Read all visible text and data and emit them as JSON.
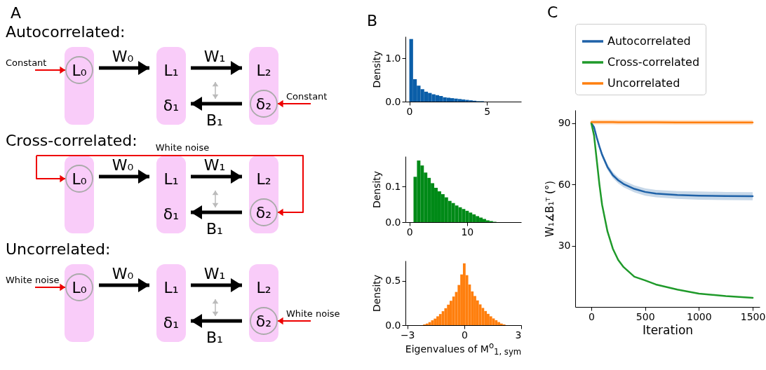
{
  "chart_data": [
    {
      "type": "other",
      "title": "A",
      "annotations": [
        "Autocorrelated:",
        "Constant",
        "Constant",
        "Cross-correlated:",
        "White noise",
        "Uncorrelated:",
        "White noise",
        "White noise",
        "L₀",
        "L₁",
        "L₂",
        "δ₁",
        "δ₂",
        "W₀",
        "W₁",
        "B₁"
      ]
    },
    {
      "type": "histogram",
      "title": "B",
      "ylabel": "Density",
      "color": "#0b5ea8",
      "bins": [
        0,
        0.24,
        0.48,
        0.72,
        0.96,
        1.2,
        1.44,
        1.68,
        1.92,
        2.16,
        2.4,
        2.64,
        2.88,
        3.12,
        3.36,
        3.6,
        3.84,
        4.08,
        4.32,
        4.56,
        4.8
      ],
      "values": [
        1.45,
        0.52,
        0.37,
        0.29,
        0.23,
        0.2,
        0.17,
        0.15,
        0.13,
        0.1,
        0.09,
        0.08,
        0.07,
        0.06,
        0.05,
        0.04,
        0.03,
        0.02,
        0.01,
        0.01
      ],
      "xlim": [
        -0.25,
        7.2
      ],
      "xticks": [
        0,
        5
      ],
      "ylim": [
        0,
        1.51
      ],
      "yticks": [
        {
          "value": 0,
          "label": "0.0"
        },
        {
          "value": 1,
          "label": "1.0"
        }
      ]
    },
    {
      "type": "histogram",
      "ylabel": "Density",
      "color": "#008a17",
      "bins": [
        0.7,
        1.3,
        1.9,
        2.5,
        3.1,
        3.7,
        4.3,
        4.9,
        5.5,
        6.1,
        6.7,
        7.3,
        7.9,
        8.5,
        9.1,
        9.7,
        10.3,
        10.9,
        11.5,
        12.1,
        12.7,
        13.3,
        13.9,
        14.5,
        15.1
      ],
      "values": [
        0.128,
        0.174,
        0.16,
        0.14,
        0.125,
        0.11,
        0.097,
        0.087,
        0.079,
        0.07,
        0.06,
        0.054,
        0.047,
        0.042,
        0.037,
        0.032,
        0.027,
        0.022,
        0.017,
        0.013,
        0.009,
        0.005,
        0.003,
        0.001
      ],
      "xlim": [
        -0.7,
        19.4
      ],
      "xticks": [
        0,
        10
      ],
      "ylim": [
        0,
        0.186
      ],
      "yticks": [
        {
          "value": 0,
          "label": "0.0"
        },
        0.1
      ]
    },
    {
      "type": "histogram",
      "ylabel": "Density",
      "xlabel": "Eigenvalues of M$^{o}$$_{1, sym}$",
      "color": "#ff7f0e",
      "bins": [
        -2.17,
        -2.03,
        -1.89,
        -1.75,
        -1.61,
        -1.47,
        -1.33,
        -1.19,
        -1.05,
        -0.91,
        -0.77,
        -0.63,
        -0.49,
        -0.35,
        -0.21,
        -0.07,
        0.07,
        0.21,
        0.35,
        0.49,
        0.63,
        0.77,
        0.91,
        1.05,
        1.19,
        1.33,
        1.47,
        1.61,
        1.75,
        1.89,
        2.03,
        2.17
      ],
      "values": [
        0.008,
        0.018,
        0.034,
        0.055,
        0.074,
        0.1,
        0.126,
        0.158,
        0.192,
        0.232,
        0.276,
        0.324,
        0.376,
        0.455,
        0.574,
        0.7,
        0.566,
        0.46,
        0.382,
        0.33,
        0.28,
        0.235,
        0.195,
        0.16,
        0.128,
        0.1,
        0.076,
        0.056,
        0.035,
        0.018,
        0.008
      ],
      "xlim": [
        -3.1,
        3
      ],
      "xticks": [
        {
          "value": -3,
          "label": "−3"
        },
        0,
        3
      ],
      "ylim": [
        0,
        0.73
      ],
      "yticks": [
        {
          "value": 0,
          "label": "0.0"
        },
        {
          "value": 0.5,
          "label": "0.5"
        }
      ]
    },
    {
      "type": "line",
      "title": "C",
      "xlabel": "Iteration",
      "ylabel": "W₁∡B₁ᵀ (°)",
      "legend": "top",
      "x": [
        0,
        25,
        50,
        75,
        100,
        150,
        200,
        250,
        300,
        400,
        500,
        600,
        800,
        1000,
        1250,
        1500
      ],
      "series": [
        {
          "name": "Autocorrelated",
          "color": "#1f62a8",
          "values": [
            90,
            88,
            83,
            78.5,
            74.5,
            68.5,
            64.5,
            62,
            60.2,
            57.8,
            56.3,
            55.5,
            54.8,
            54.5,
            54.3,
            54.2
          ],
          "lower": [
            89.5,
            87.2,
            82,
            77.3,
            73.2,
            67.1,
            63,
            60.5,
            58.6,
            56.1,
            54.5,
            53.7,
            52.9,
            52.5,
            52.3,
            52.2
          ],
          "upper": [
            90.5,
            88.8,
            84,
            79.7,
            75.8,
            69.9,
            66,
            63.5,
            61.8,
            59.5,
            58.1,
            57.3,
            56.7,
            56.5,
            56.3,
            56.2
          ]
        },
        {
          "name": "Cross-correlated",
          "color": "#1f9a2a",
          "values": [
            90,
            84,
            72,
            60,
            50,
            37,
            28.5,
            23,
            19.5,
            14.8,
            13,
            11,
            8.5,
            6.5,
            5.3,
            4.5
          ]
        },
        {
          "name": "Uncorrelated",
          "color": "#ff7f0e",
          "values": [
            90.5,
            90.5,
            90.5,
            90.5,
            90.5,
            90.5,
            90.5,
            90.4,
            90.4,
            90.4,
            90.4,
            90.4,
            90.3,
            90.3,
            90.3,
            90.3
          ],
          "lower": [
            89.5,
            89.4,
            89.4,
            89.4,
            89.4,
            89.4,
            89.4,
            89.3,
            89.3,
            89.3,
            89.3,
            89.3,
            89.2,
            89.2,
            89.2,
            89.2
          ],
          "upper": [
            91.5,
            91.6,
            91.6,
            91.6,
            91.6,
            91.6,
            91.6,
            91.5,
            91.5,
            91.5,
            91.5,
            91.5,
            91.4,
            91.4,
            91.4,
            91.4
          ]
        }
      ],
      "xlim": [
        -150,
        1565
      ],
      "xticks": [
        0,
        500,
        1000,
        1500
      ],
      "ylim": [
        0,
        96.4
      ],
      "yticks": [
        30,
        60,
        90
      ]
    }
  ]
}
